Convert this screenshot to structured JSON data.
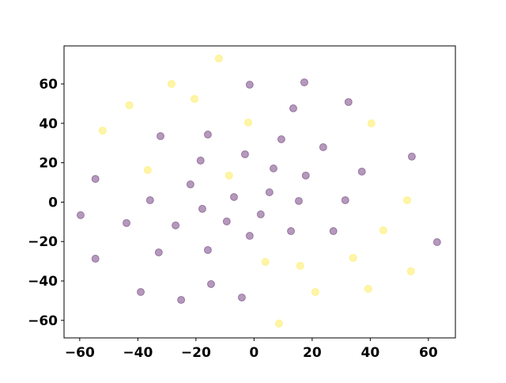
{
  "chart_data": {
    "type": "scatter",
    "xlim": [
      -65.4,
      69.3
    ],
    "ylim": [
      -68.9,
      79.3
    ],
    "xticks": [
      {
        "value": -60,
        "label": "−60"
      },
      {
        "value": -40,
        "label": "−40"
      },
      {
        "value": -20,
        "label": "−20"
      },
      0,
      20,
      40,
      60
    ],
    "yticks": [
      {
        "value": -60,
        "label": "−60"
      },
      {
        "value": -40,
        "label": "−40"
      },
      {
        "value": -20,
        "label": "−20"
      },
      0,
      20,
      40,
      60
    ],
    "alpha": 0.4,
    "series": [
      {
        "color": "#440154",
        "x": [
          -59.7,
          -54.6,
          -54.6,
          -43.9,
          -39.0,
          -35.8,
          -32.8,
          -32.2,
          -27.0,
          -25.1,
          -21.9,
          -18.4,
          -17.8,
          -15.9,
          -15.9,
          -14.8,
          -9.4,
          -6.9,
          -4.2,
          -3.1,
          -1.5,
          -1.5,
          2.3,
          5.3,
          6.7,
          9.4,
          12.7,
          13.5,
          15.4,
          17.3,
          17.8,
          23.8,
          27.3,
          31.4,
          32.5,
          37.1,
          54.3,
          63.0
        ],
        "y": [
          -6.6,
          11.8,
          -28.7,
          -10.6,
          -45.6,
          1.0,
          -25.5,
          33.5,
          -11.8,
          -49.6,
          9.0,
          21.1,
          -3.4,
          34.3,
          -24.3,
          -41.6,
          -9.8,
          2.6,
          -48.4,
          24.3,
          59.6,
          -17.1,
          -6.2,
          5.0,
          17.1,
          31.9,
          -14.7,
          47.6,
          0.6,
          60.8,
          13.5,
          27.9,
          -14.7,
          1.0,
          50.8,
          15.5,
          23.1,
          -20.3
        ]
      },
      {
        "color": "#fde725",
        "x": [
          -12.1,
          -28.4,
          -42.9,
          -52.1,
          -20.5,
          -36.6,
          -8.6,
          -2.0,
          40.4,
          52.7,
          44.5,
          3.9,
          15.9,
          34.1,
          54.0,
          21.1,
          39.3,
          8.6
        ],
        "y": [
          72.9,
          60.0,
          49.2,
          36.3,
          52.4,
          16.3,
          13.5,
          40.4,
          40.0,
          1.0,
          -14.3,
          -30.3,
          -32.3,
          -28.3,
          -35.1,
          -45.6,
          -44.0,
          -61.6
        ]
      }
    ]
  }
}
